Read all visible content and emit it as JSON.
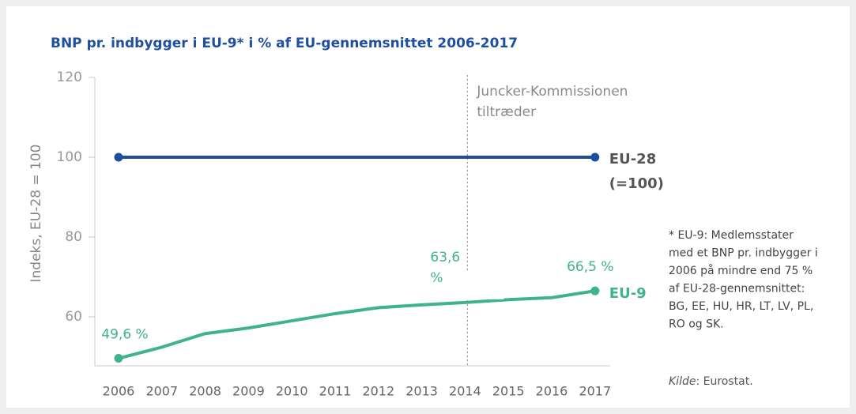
{
  "chart_data": {
    "type": "line",
    "title": "BNP pr. indbygger i EU-9* i % af EU-gennemsnittet 2006-2017",
    "y_label": "Indeks, EU-28 = 100",
    "categories": [
      "2006",
      "2007",
      "2008",
      "2009",
      "2010",
      "2011",
      "2012",
      "2013",
      "2014",
      "2015",
      "2016",
      "2017"
    ],
    "series": [
      {
        "name": "EU-28 (=100)",
        "color": "#1d4f9c",
        "values": [
          100,
          100,
          100,
          100,
          100,
          100,
          100,
          100,
          100,
          100,
          100,
          100
        ]
      },
      {
        "name": "EU-9",
        "color": "#3fb38b",
        "values": [
          49.6,
          52.4,
          55.8,
          57.2,
          59.0,
          60.8,
          62.3,
          63.0,
          63.6,
          64.3,
          64.8,
          66.5
        ],
        "value_labels": [
          "49,6 %",
          null,
          null,
          null,
          null,
          null,
          null,
          null,
          "63,6 %",
          null,
          null,
          "66,5 %"
        ]
      }
    ],
    "ylim": [
      48,
      120
    ],
    "yticks": [
      60,
      80,
      100,
      120
    ],
    "event": {
      "category": "2014",
      "text": "Juncker-Kommissionen tiltræder"
    },
    "footnote": [
      "* EU-9: Medlemsstater",
      "med et BNP pr. indbygger i",
      "2006 på mindre end 75 %",
      "af EU-28-gennemsnittet:",
      "BG, EE, HU, HR, LT, LV, PL,",
      "RO og SK."
    ],
    "source": {
      "label": "Kilde",
      "text": ":  Eurostat."
    }
  }
}
